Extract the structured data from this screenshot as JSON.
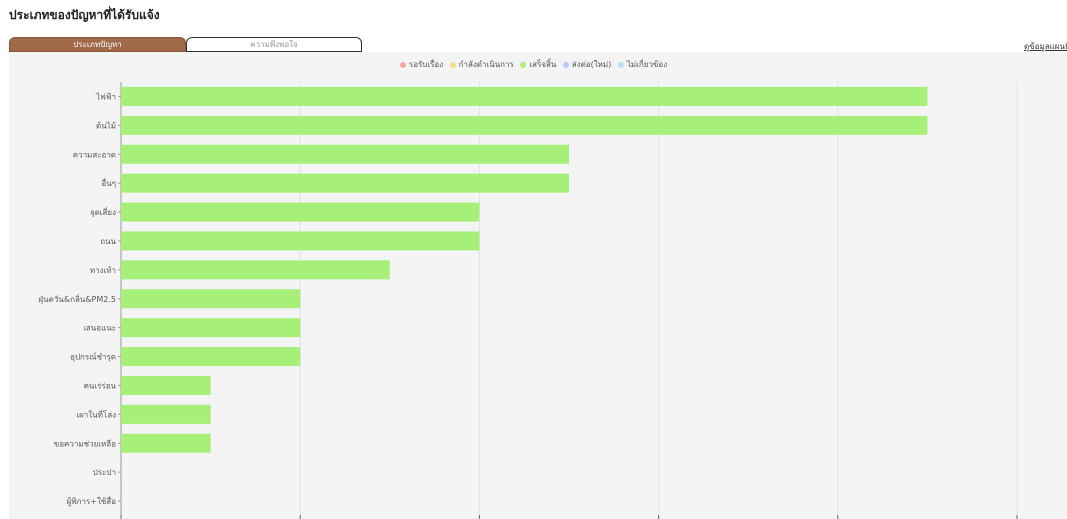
{
  "title": "ประเภทของปัญหาที่ได้รับแจ้ง",
  "tabs": [
    {
      "label": "ประเภทปัญหา",
      "active": true
    },
    {
      "label": "ความพึงพอใจ",
      "active": false
    }
  ],
  "map_link": "ดูข้อมูลแผนที่",
  "colors": {
    "bar": "#a6f07a",
    "tab_active": "#a0694a",
    "panel_bg": "#f4f4f4"
  },
  "chart_data": {
    "type": "bar",
    "orientation": "horizontal",
    "categories": [
      "ไฟฟ้า",
      "ต้นไม้",
      "ความสะอาด",
      "อื่นๆ",
      "จุดเสี่ยง",
      "ถนน",
      "ทางเท้า",
      "ฝุ่นควัน&กลิ่น&PM2.5",
      "เสนอแนะ",
      "อุปกรณ์ชำรุด",
      "คนเร่ร่อน",
      "เผาในที่โล่ง",
      "ขอความช่วยเหลือ",
      "ประปา",
      "ผู้พิการ+ใช้สื่อ"
    ],
    "series": [
      {
        "name": "รอรับเรื่อง",
        "color": "#f4a6a6",
        "values": [
          0,
          0,
          0,
          0,
          0,
          0,
          0,
          0,
          0,
          0,
          0,
          0,
          0,
          0,
          0
        ]
      },
      {
        "name": "กำลังดำเนินการ",
        "color": "#f9d98a",
        "values": [
          0,
          0,
          0,
          0,
          0,
          0,
          0,
          0,
          0,
          0,
          0,
          0,
          0,
          0,
          0
        ]
      },
      {
        "name": "เสร็จสิ้น",
        "color": "#a6f07a",
        "values": [
          9,
          9,
          5,
          5,
          4,
          4,
          3,
          2,
          2,
          2,
          1,
          1,
          1,
          0,
          0
        ]
      },
      {
        "name": "ส่งต่อ(ใหม่)",
        "color": "#b8c9f4",
        "values": [
          0,
          0,
          0,
          0,
          0,
          0,
          0,
          0,
          0,
          0,
          0,
          0,
          0,
          0,
          0
        ]
      },
      {
        "name": "ไม่เกี่ยวข้อง",
        "color": "#b6dff6",
        "values": [
          0,
          0,
          0,
          0,
          0,
          0,
          0,
          0,
          0,
          0,
          0,
          0,
          0,
          0,
          0
        ]
      }
    ],
    "stacked": true,
    "xlim": [
      0,
      10
    ],
    "grid": true,
    "legend_position": "top-center"
  }
}
